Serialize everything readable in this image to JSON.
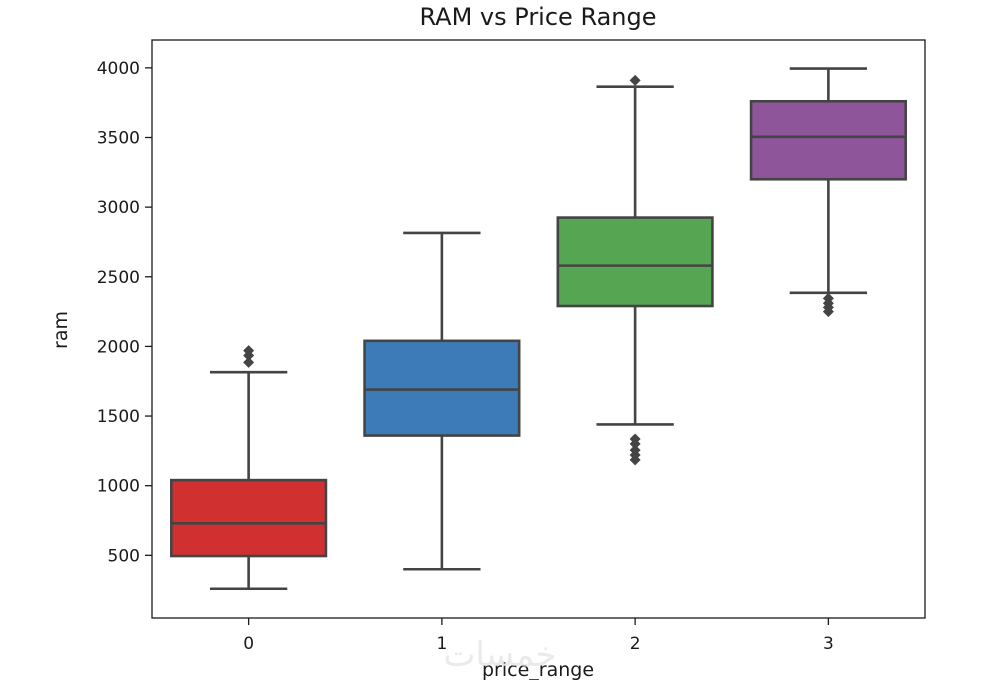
{
  "chart_data": {
    "type": "box",
    "title": "RAM vs Price Range",
    "xlabel": "price_range",
    "ylabel": "ram",
    "categories": [
      "0",
      "1",
      "2",
      "3"
    ],
    "ylim": [
      50,
      4200
    ],
    "yticks": [
      500,
      1000,
      1500,
      2000,
      2500,
      3000,
      3500,
      4000
    ],
    "grid": false,
    "legend": "none",
    "boxes": [
      {
        "category": "0",
        "whisker_low": 260,
        "q1": 495,
        "median": 730,
        "q3": 1040,
        "whisker_high": 1815,
        "outliers": [
          1885,
          1935,
          1970
        ],
        "color": "#d03030"
      },
      {
        "category": "1",
        "whisker_low": 400,
        "q1": 1360,
        "median": 1690,
        "q3": 2040,
        "whisker_high": 2815,
        "outliers": [],
        "color": "#3d7ab8"
      },
      {
        "category": "2",
        "whisker_low": 1440,
        "q1": 2290,
        "median": 2580,
        "q3": 2925,
        "whisker_high": 3865,
        "outliers": [
          1185,
          1220,
          1255,
          1300,
          1335,
          3910
        ],
        "color": "#56a552"
      },
      {
        "category": "3",
        "whisker_low": 2385,
        "q1": 3200,
        "median": 3505,
        "q3": 3760,
        "whisker_high": 3995,
        "outliers": [
          2250,
          2280,
          2310,
          2345
        ],
        "color": "#8e559a"
      }
    ]
  },
  "watermark": "خمسات"
}
